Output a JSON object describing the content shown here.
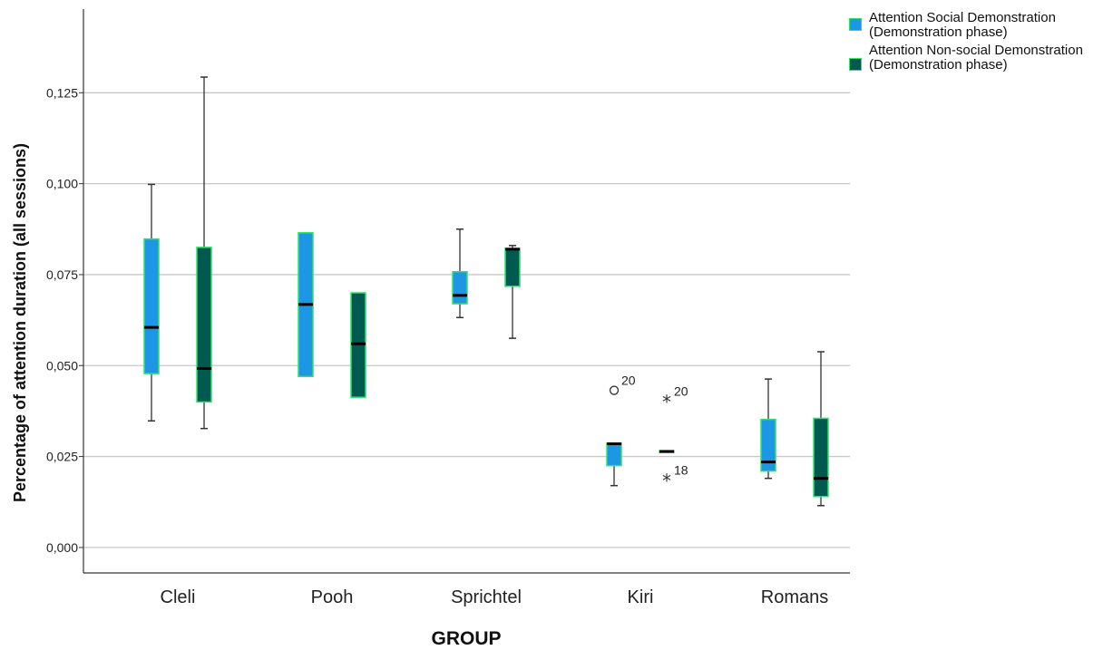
{
  "chart_data": {
    "type": "boxplot",
    "xlabel": "GROUP",
    "ylabel": "Percentage of attention duration (all sessions)",
    "ylim": [
      -0.007,
      0.148
    ],
    "y_ticks": [
      0.0,
      0.025,
      0.05,
      0.075,
      0.1,
      0.125
    ],
    "y_tick_labels": [
      "0,000",
      "0,025",
      "0,050",
      "0,075",
      "0,100",
      "0,125"
    ],
    "grid": "horizontal",
    "legend_position": "top-right",
    "categories": [
      "Cleli",
      "Pooh",
      "Sprichtel",
      "Kiri",
      "Romans"
    ],
    "series": [
      {
        "name": "Attention Social Demonstration (Demonstration phase)",
        "color": "#1e96e6",
        "border_color": "#2fe06a",
        "boxes": [
          {
            "whisker_low": 0.0348,
            "q1": 0.0478,
            "median": 0.0605,
            "q3": 0.0848,
            "whisker_high": 0.0998
          },
          {
            "whisker_low": 0.047,
            "q1": 0.047,
            "median": 0.0668,
            "q3": 0.0865,
            "whisker_high": 0.0865
          },
          {
            "whisker_low": 0.0632,
            "q1": 0.067,
            "median": 0.0693,
            "q3": 0.0758,
            "whisker_high": 0.0875
          },
          {
            "whisker_low": 0.017,
            "q1": 0.0225,
            "median": 0.0285,
            "q3": 0.0287,
            "whisker_high": 0.0287
          },
          {
            "whisker_low": 0.019,
            "q1": 0.021,
            "median": 0.0235,
            "q3": 0.0352,
            "whisker_high": 0.0463
          }
        ],
        "outliers": [
          {
            "category": "Kiri",
            "value": 0.0432,
            "marker": "circle",
            "label": "20"
          }
        ]
      },
      {
        "name": "Attention Non-social Demonstration (Demonstration phase)",
        "color": "#005a50",
        "border_color": "#2fe06a",
        "boxes": [
          {
            "whisker_low": 0.0327,
            "q1": 0.04,
            "median": 0.0492,
            "q3": 0.0825,
            "whisker_high": 0.1293
          },
          {
            "whisker_low": 0.0413,
            "q1": 0.0413,
            "median": 0.056,
            "q3": 0.07,
            "whisker_high": 0.07
          },
          {
            "whisker_low": 0.0575,
            "q1": 0.0718,
            "median": 0.082,
            "q3": 0.0822,
            "whisker_high": 0.083
          },
          {
            "whisker_low": 0.0262,
            "q1": 0.0262,
            "median": 0.0264,
            "q3": 0.0266,
            "whisker_high": 0.0266
          },
          {
            "whisker_low": 0.0115,
            "q1": 0.014,
            "median": 0.019,
            "q3": 0.0355,
            "whisker_high": 0.0538
          }
        ],
        "outliers": [
          {
            "category": "Kiri",
            "value": 0.0402,
            "marker": "star",
            "label": "20"
          },
          {
            "category": "Kiri",
            "value": 0.0185,
            "marker": "star",
            "label": "18"
          }
        ]
      }
    ]
  }
}
